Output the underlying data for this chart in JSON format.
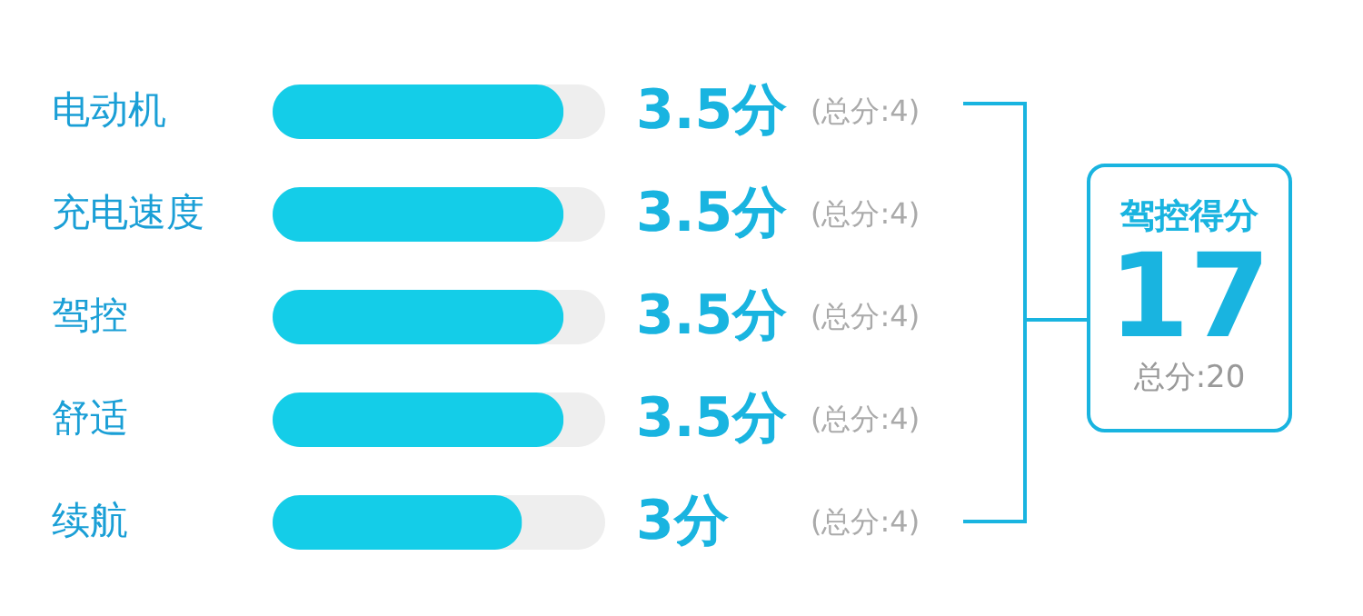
{
  "chart_data": {
    "type": "bar",
    "orientation": "horizontal",
    "categories": [
      "电动机",
      "充电速度",
      "驾控",
      "舒适",
      "续航"
    ],
    "values": [
      3.5,
      3.5,
      3.5,
      3.5,
      3
    ],
    "color": "#14cde8",
    "xlim": [
      0,
      4
    ],
    "value_labels": [
      "3.5分",
      "3.5分",
      "3.5分",
      "3.5分",
      "3分"
    ],
    "annotations": [
      "(总分:4)",
      "(总分:4)",
      "(总分:4)",
      "(总分:4)",
      "(总分:4)",
      "驾控得分",
      "17",
      "总分:20"
    ],
    "tick_labels": "y"
  }
}
